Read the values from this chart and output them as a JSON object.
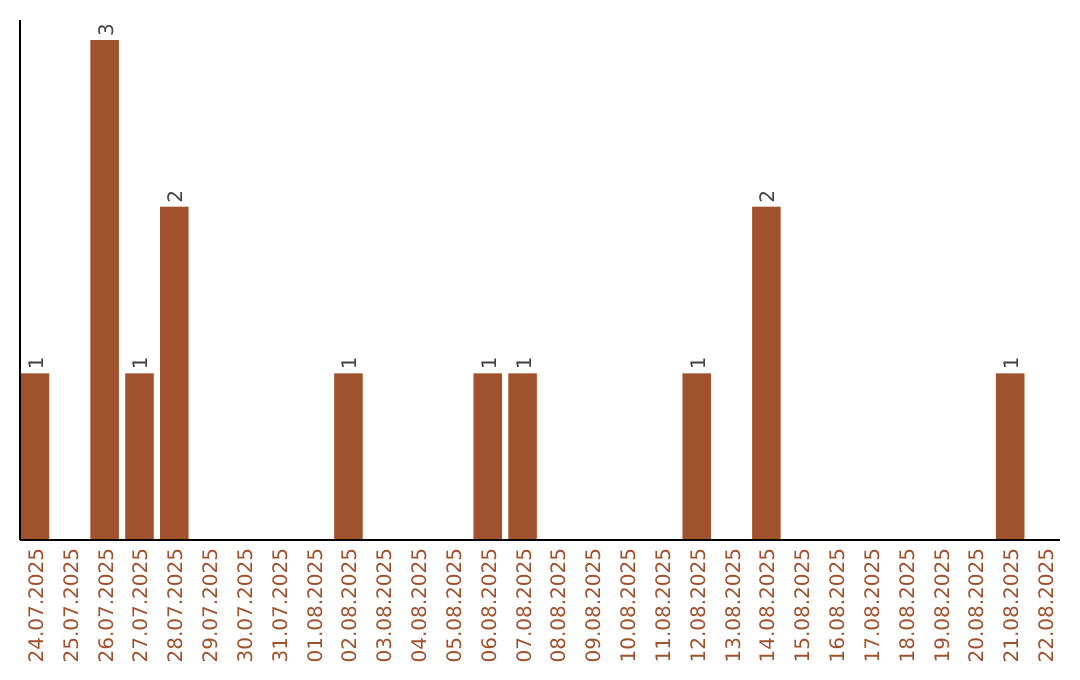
{
  "chart_data": {
    "type": "bar",
    "categories": [
      "24.07.2025",
      "25.07.2025",
      "26.07.2025",
      "27.07.2025",
      "28.07.2025",
      "29.07.2025",
      "30.07.2025",
      "31.07.2025",
      "01.08.2025",
      "02.08.2025",
      "03.08.2025",
      "04.08.2025",
      "05.08.2025",
      "06.08.2025",
      "07.08.2025",
      "08.08.2025",
      "09.08.2025",
      "10.08.2025",
      "11.08.2025",
      "12.08.2025",
      "13.08.2025",
      "14.08.2025",
      "15.08.2025",
      "16.08.2025",
      "17.08.2025",
      "18.08.2025",
      "19.08.2025",
      "20.08.2025",
      "21.08.2025",
      "22.08.2025"
    ],
    "values": [
      1,
      0,
      3,
      1,
      2,
      0,
      0,
      0,
      0,
      1,
      0,
      0,
      0,
      1,
      1,
      0,
      0,
      0,
      0,
      1,
      0,
      2,
      0,
      0,
      0,
      0,
      0,
      0,
      1,
      0
    ],
    "value_labels": [
      "1",
      null,
      "3",
      "1",
      "2",
      null,
      null,
      null,
      null,
      "1",
      null,
      null,
      null,
      "1",
      "1",
      null,
      null,
      null,
      null,
      "1",
      null,
      "2",
      null,
      null,
      null,
      null,
      null,
      null,
      "1",
      null
    ],
    "color": "#a0522d",
    "ylim": [
      0,
      3
    ],
    "tick_labels": "x"
  }
}
